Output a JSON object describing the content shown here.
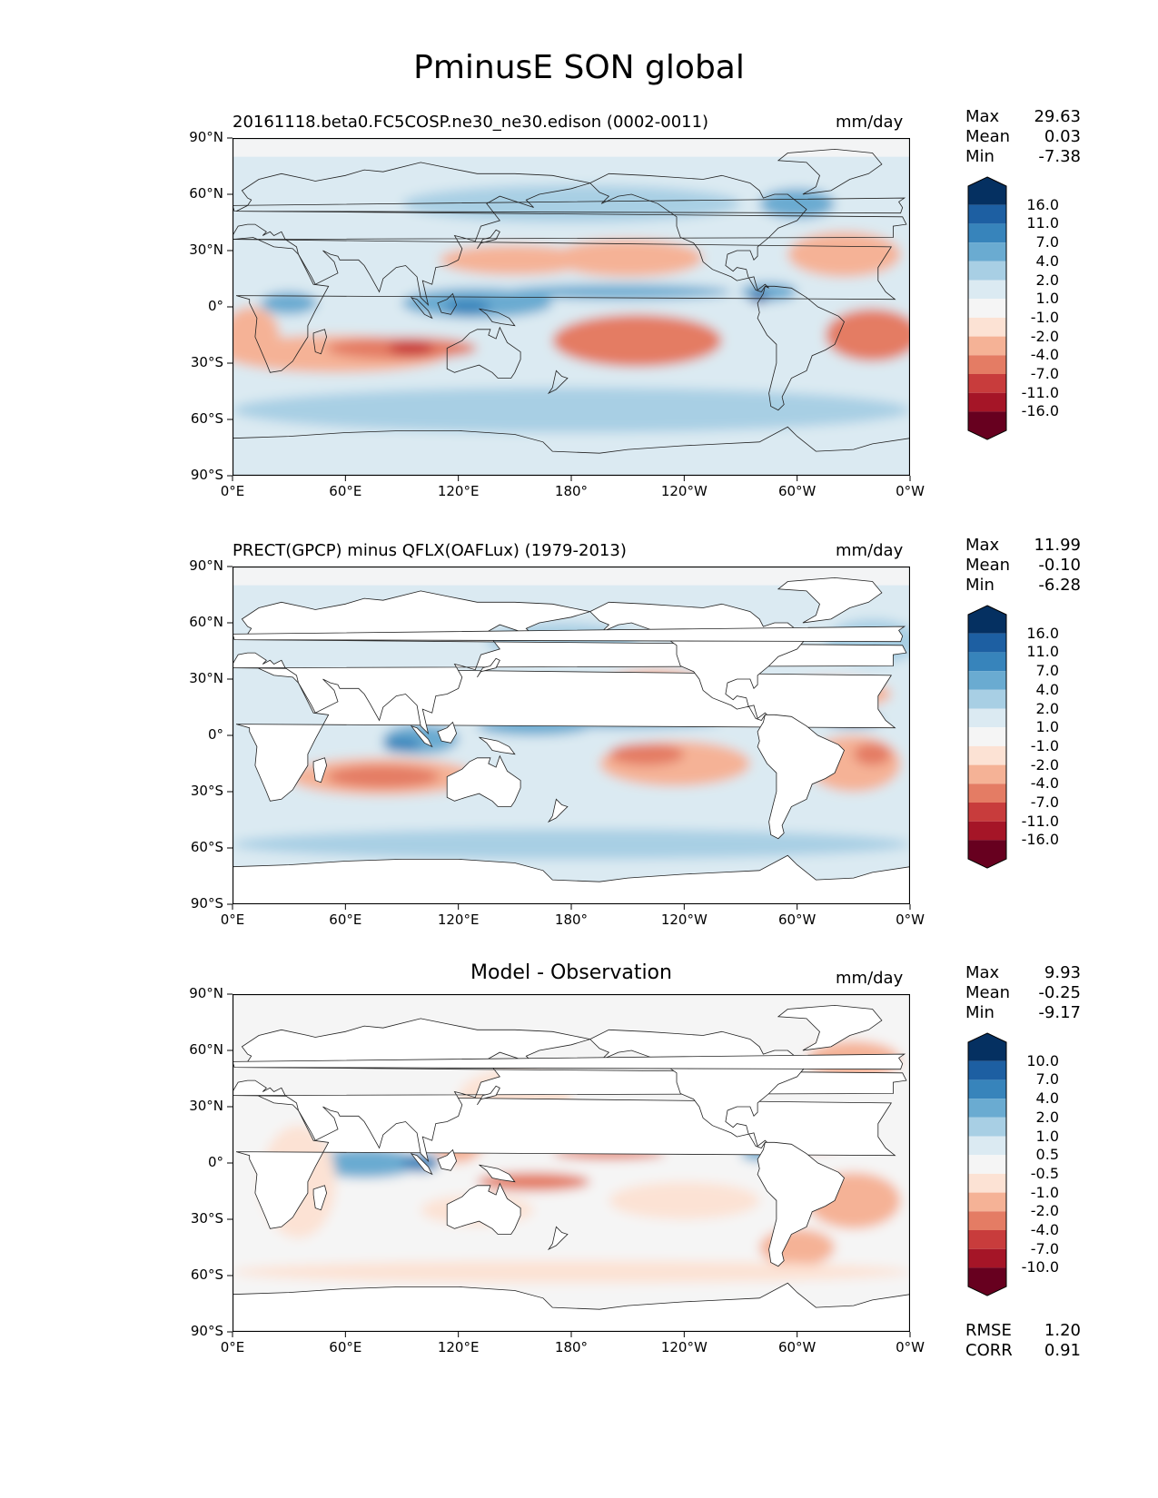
{
  "figure": {
    "title": "PminusE SON global"
  },
  "colors": {
    "colormap": [
      "#67001f",
      "#a51527",
      "#c83c3c",
      "#e47c64",
      "#f5b296",
      "#fce2d4",
      "#f5f5f5",
      "#dbeaf2",
      "#a8cfe4",
      "#6aabd1",
      "#3784bb",
      "#1d5fa2",
      "#053061"
    ]
  },
  "chart_data": [
    {
      "type": "heatmap",
      "title": "20161118.beta0.FC5COSP.ne30_ne30.edison (0002-0011)",
      "units": "mm/day",
      "stats": {
        "max": "29.63",
        "mean": "0.03",
        "min": "-7.38"
      },
      "xticks": [
        "0°E",
        "60°E",
        "120°E",
        "180°",
        "120°W",
        "60°W",
        "0°W"
      ],
      "yticks": [
        "90°N",
        "60°N",
        "30°N",
        "0°",
        "30°S",
        "60°S",
        "90°S"
      ],
      "xlim": [
        0,
        360
      ],
      "ylim": [
        -90,
        90
      ],
      "colorbar_levels": [
        "16.0",
        "11.0",
        "7.0",
        "4.0",
        "2.0",
        "1.0",
        "-1.0",
        "-2.0",
        "-4.0",
        "-7.0",
        "-11.0",
        "-16.0"
      ],
      "colorbar_extend": "both"
    },
    {
      "type": "heatmap",
      "title": "PRECT(GPCP) minus QFLX(OAFLux) (1979-2013)",
      "units": "mm/day",
      "stats": {
        "max": "11.99",
        "mean": "-0.10",
        "min": "-6.28"
      },
      "xticks": [
        "0°E",
        "60°E",
        "120°E",
        "180°",
        "120°W",
        "60°W",
        "0°W"
      ],
      "yticks": [
        "90°N",
        "60°N",
        "30°N",
        "0°",
        "30°S",
        "60°S",
        "90°S"
      ],
      "xlim": [
        0,
        360
      ],
      "ylim": [
        -90,
        90
      ],
      "colorbar_levels": [
        "16.0",
        "11.0",
        "7.0",
        "4.0",
        "2.0",
        "1.0",
        "-1.0",
        "-2.0",
        "-4.0",
        "-7.0",
        "-11.0",
        "-16.0"
      ],
      "colorbar_extend": "both"
    },
    {
      "type": "heatmap",
      "title": "Model - Observation",
      "units": "mm/day",
      "stats": {
        "max": "9.93",
        "mean": "-0.25",
        "min": "-9.17"
      },
      "metrics": {
        "rmse": "1.20",
        "corr": "0.91"
      },
      "xticks": [
        "0°E",
        "60°E",
        "120°E",
        "180°",
        "120°W",
        "60°W",
        "0°W"
      ],
      "yticks": [
        "90°N",
        "60°N",
        "30°N",
        "0°",
        "30°S",
        "60°S",
        "90°S"
      ],
      "xlim": [
        0,
        360
      ],
      "ylim": [
        -90,
        90
      ],
      "colorbar_levels": [
        "10.0",
        "7.0",
        "4.0",
        "2.0",
        "1.0",
        "0.5",
        "-0.5",
        "-1.0",
        "-2.0",
        "-4.0",
        "-7.0",
        "-10.0"
      ],
      "colorbar_extend": "both"
    }
  ],
  "labels": {
    "max": "Max",
    "mean": "Mean",
    "min": "Min",
    "rmse": "RMSE",
    "corr": "CORR"
  }
}
